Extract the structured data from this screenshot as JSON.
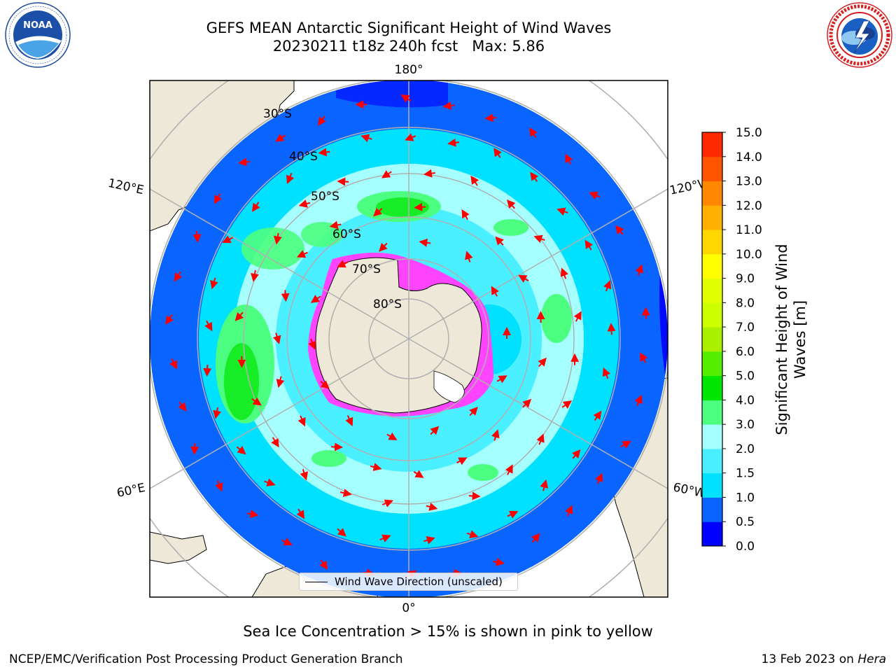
{
  "header": {
    "title_line1": "GEFS MEAN Antarctic Significant Height of Wind Waves",
    "title_line2": "20230211 t18z 240h fcst   Max: 5.86"
  },
  "logos": {
    "noaa": "NOAA",
    "noaa_ring": "NATIONAL OCEANIC AND ATMOSPHERIC ADMINISTRATION · U.S. DEPARTMENT OF COMMERCE",
    "nws_ring": "NATIONAL WEATHER SERVICE"
  },
  "map": {
    "longitude_labels": {
      "top": "180°",
      "bottom": "0°",
      "upper_left": "120°E",
      "upper_right": "120°W",
      "lower_left": "60°E",
      "lower_right": "60°W"
    },
    "latitude_labels": [
      "30°S",
      "40°S",
      "50°S",
      "60°S",
      "70°S",
      "80°S"
    ],
    "legend": "Wind Wave Direction (unscaled)"
  },
  "colorbar": {
    "label_line1": "Significant Height of Wind",
    "label_line2": "Waves [m]",
    "ticks": [
      "0.0",
      "0.5",
      "1.0",
      "1.5",
      "2.0",
      "3.0",
      "4.0",
      "5.0",
      "6.0",
      "7.0",
      "8.0",
      "9.0",
      "10.0",
      "11.0",
      "12.0",
      "13.0",
      "14.0",
      "15.0"
    ],
    "colors": [
      "#0000ff",
      "#0a64ff",
      "#00e1ff",
      "#4af0ff",
      "#a6ffff",
      "#4dff80",
      "#00e600",
      "#55ee00",
      "#aaf000",
      "#ccff00",
      "#e1ff00",
      "#ffff00",
      "#ffd700",
      "#ffb000",
      "#ff8800",
      "#ff5500",
      "#ff2a00",
      "#ff0000"
    ]
  },
  "caption": "Sea Ice Concentration > 15% is shown in pink to yellow",
  "footer": {
    "left": "NCEP/EMC/Verification Post Processing Product Generation Branch",
    "right_date": "13 Feb 2023 on ",
    "right_host": "Hera"
  },
  "chart_data": {
    "type": "heatmap",
    "title": "GEFS MEAN Antarctic Significant Height of Wind Waves",
    "subtitle": "20230211 t18z 240h fcst   Max: 5.86",
    "projection": "south polar stereographic",
    "colorbar_ticks": [
      0.0,
      0.5,
      1.0,
      1.5,
      2.0,
      3.0,
      4.0,
      5.0,
      6.0,
      7.0,
      8.0,
      9.0,
      10.0,
      11.0,
      12.0,
      13.0,
      14.0,
      15.0
    ],
    "colorbar_range": [
      0,
      15
    ],
    "max_value": 5.86,
    "ylabel": "Significant Height of Wind Waves [m]",
    "legend": [
      "Wind Wave Direction (unscaled)"
    ]
  }
}
